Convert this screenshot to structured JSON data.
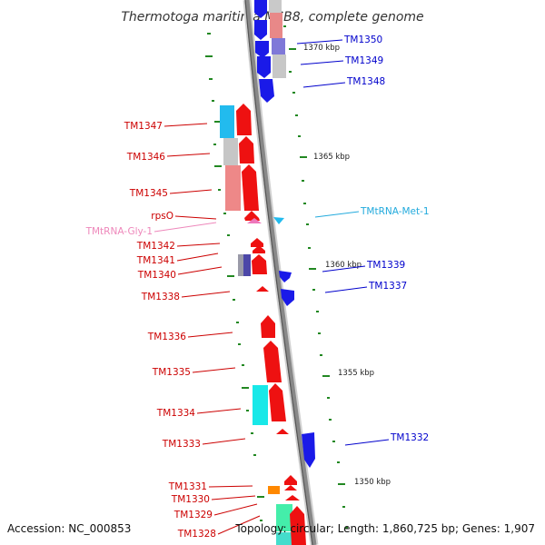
{
  "title": "Thermotoga maritima MSB8, complete genome",
  "accession_text": "Accession: NC_000853",
  "summary_text": "Topology: circular; Length: 1,860,725 bp; Genes: 1,907",
  "colors": {
    "forward_gene": "#ee1111",
    "reverse_gene": "#1111ee",
    "rna_forward": "#ee77bb",
    "rna_reverse": "#22bbee",
    "backbone": "#888888",
    "tick": "#228822",
    "gene_label": "#cc0000",
    "reverse_label": "#0000cc",
    "trna_met_label": "#22aadd",
    "trna_gly_label": "#ee88bb"
  },
  "kbp_markers": [
    "1370 kbp",
    "1365 kbp",
    "1360 kbp",
    "1355 kbp",
    "1350 kbp"
  ],
  "forward_gene_labels": [
    "TM1347",
    "TM1346",
    "TM1345",
    "rpsO",
    "TM1342",
    "TM1341",
    "TM1340",
    "TM1338",
    "TM1336",
    "TM1335",
    "TM1334",
    "TM1333",
    "TM1331",
    "TM1330",
    "TM1329",
    "TM1328"
  ],
  "trna_forward_label": "TMtRNA-Gly-1",
  "reverse_gene_labels": [
    "TM1350",
    "TM1349",
    "TM1348",
    "TM1339",
    "TM1337",
    "TM1332"
  ],
  "trna_reverse_label": "TMtRNA-Met-1"
}
